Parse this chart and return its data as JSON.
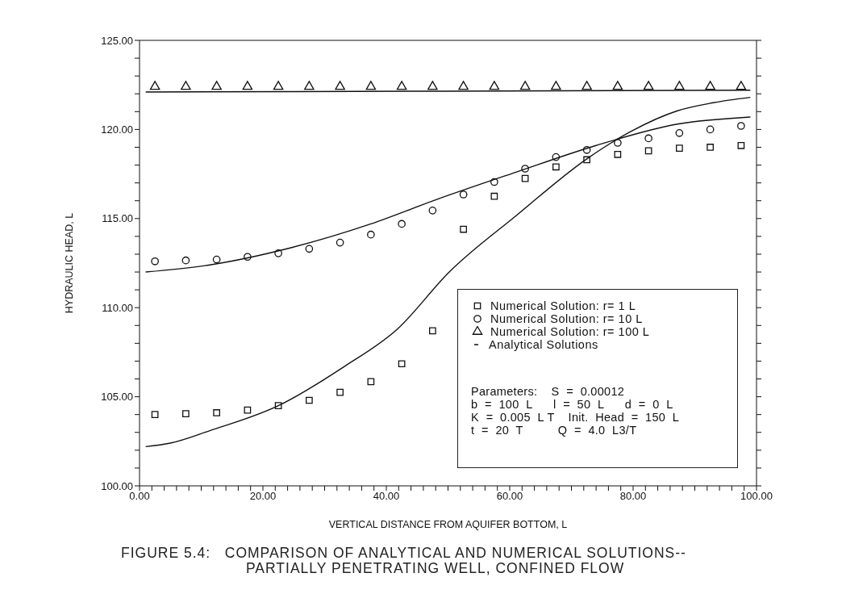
{
  "chart_data": {
    "type": "scatter",
    "title": "FIGURE 5.4:   COMPARISON OF ANALYTICAL AND NUMERICAL SOLUTIONS--",
    "subtitle": "PARTIALLY PENETRATING WELL, CONFINED FLOW",
    "xlabel": "VERTICAL DISTANCE FROM AQUIFER BOTTOM, L",
    "ylabel": "HYDRAULIC HEAD, L",
    "xlim": [
      0,
      100
    ],
    "ylim": [
      100,
      125
    ],
    "xticks": [
      {
        "value": 0,
        "label": "0.00"
      },
      {
        "value": 2,
        "label": null
      },
      {
        "value": 4,
        "label": null
      },
      {
        "value": 6,
        "label": null
      },
      {
        "value": 8,
        "label": null
      },
      {
        "value": 10,
        "label": null
      },
      {
        "value": 12,
        "label": null
      },
      {
        "value": 14,
        "label": null
      },
      {
        "value": 16,
        "label": null
      },
      {
        "value": 18,
        "label": null
      },
      {
        "value": 20,
        "label": "20.00"
      },
      {
        "value": 22,
        "label": null
      },
      {
        "value": 24,
        "label": null
      },
      {
        "value": 26,
        "label": null
      },
      {
        "value": 28,
        "label": null
      },
      {
        "value": 30,
        "label": null
      },
      {
        "value": 32,
        "label": null
      },
      {
        "value": 34,
        "label": null
      },
      {
        "value": 36,
        "label": null
      },
      {
        "value": 38,
        "label": null
      },
      {
        "value": 40,
        "label": "40.00"
      },
      {
        "value": 42,
        "label": null
      },
      {
        "value": 44,
        "label": null
      },
      {
        "value": 46,
        "label": null
      },
      {
        "value": 48,
        "label": null
      },
      {
        "value": 50,
        "label": null
      },
      {
        "value": 52,
        "label": null
      },
      {
        "value": 54,
        "label": null
      },
      {
        "value": 56,
        "label": null
      },
      {
        "value": 58,
        "label": null
      },
      {
        "value": 60,
        "label": "60.00"
      },
      {
        "value": 62,
        "label": null
      },
      {
        "value": 64,
        "label": null
      },
      {
        "value": 66,
        "label": null
      },
      {
        "value": 68,
        "label": null
      },
      {
        "value": 70,
        "label": null
      },
      {
        "value": 72,
        "label": null
      },
      {
        "value": 74,
        "label": null
      },
      {
        "value": 76,
        "label": null
      },
      {
        "value": 78,
        "label": null
      },
      {
        "value": 80,
        "label": "80.00"
      },
      {
        "value": 82,
        "label": null
      },
      {
        "value": 84,
        "label": null
      },
      {
        "value": 86,
        "label": null
      },
      {
        "value": 88,
        "label": null
      },
      {
        "value": 90,
        "label": null
      },
      {
        "value": 92,
        "label": null
      },
      {
        "value": 94,
        "label": null
      },
      {
        "value": 96,
        "label": null
      },
      {
        "value": 98,
        "label": null
      },
      {
        "value": 100,
        "label": "100.00"
      }
    ],
    "yticks": [
      {
        "value": 100,
        "label": "100.00"
      },
      {
        "value": 101,
        "label": null
      },
      {
        "value": 102,
        "label": null
      },
      {
        "value": 103,
        "label": null
      },
      {
        "value": 104,
        "label": null
      },
      {
        "value": 105,
        "label": "105.00"
      },
      {
        "value": 106,
        "label": null
      },
      {
        "value": 107,
        "label": null
      },
      {
        "value": 108,
        "label": null
      },
      {
        "value": 109,
        "label": null
      },
      {
        "value": 110,
        "label": "110.00"
      },
      {
        "value": 111,
        "label": null
      },
      {
        "value": 112,
        "label": null
      },
      {
        "value": 113,
        "label": null
      },
      {
        "value": 114,
        "label": null
      },
      {
        "value": 115,
        "label": "115.00"
      },
      {
        "value": 116,
        "label": null
      },
      {
        "value": 117,
        "label": null
      },
      {
        "value": 118,
        "label": null
      },
      {
        "value": 119,
        "label": null
      },
      {
        "value": 120,
        "label": "120.00"
      },
      {
        "value": 121,
        "label": null
      },
      {
        "value": 122,
        "label": null
      },
      {
        "value": 123,
        "label": null
      },
      {
        "value": 124,
        "label": null
      },
      {
        "value": 125,
        "label": "125.00"
      }
    ],
    "grid": false,
    "legend": "bottom right",
    "series": [
      {
        "name": "Numerical Solution: r= 1 L",
        "marker": "square",
        "color": "#111111",
        "x": [
          2.5,
          7.5,
          12.5,
          17.5,
          22.5,
          27.5,
          32.5,
          37.5,
          42.5,
          47.5,
          52.5,
          57.5,
          62.5,
          67.5,
          72.5,
          77.5,
          82.5,
          87.5,
          92.5,
          97.5
        ],
        "values": [
          104.0,
          104.05,
          104.1,
          104.25,
          104.5,
          104.8,
          105.25,
          105.85,
          106.85,
          108.7,
          114.4,
          116.25,
          117.25,
          117.9,
          118.3,
          118.6,
          118.8,
          118.95,
          119.0,
          119.1
        ]
      },
      {
        "name": "Numerical Solution: r= 10 L",
        "marker": "circle",
        "color": "#111111",
        "x": [
          2.5,
          7.5,
          12.5,
          17.5,
          22.5,
          27.5,
          32.5,
          37.5,
          42.5,
          47.5,
          52.5,
          57.5,
          62.5,
          67.5,
          72.5,
          77.5,
          82.5,
          87.5,
          92.5,
          97.5
        ],
        "values": [
          112.6,
          112.65,
          112.7,
          112.85,
          113.05,
          113.3,
          113.65,
          114.1,
          114.7,
          115.45,
          116.35,
          117.05,
          117.8,
          118.45,
          118.85,
          119.25,
          119.5,
          119.8,
          120.0,
          120.2
        ]
      },
      {
        "name": "Numerical Solution: r= 100 L",
        "marker": "triangle",
        "color": "#111111",
        "x": [
          2.5,
          7.5,
          12.5,
          17.5,
          22.5,
          27.5,
          32.5,
          37.5,
          42.5,
          47.5,
          52.5,
          57.5,
          62.5,
          67.5,
          72.5,
          77.5,
          82.5,
          87.5,
          92.5,
          97.5
        ],
        "values": [
          122.4,
          122.4,
          122.4,
          122.4,
          122.4,
          122.4,
          122.4,
          122.4,
          122.4,
          122.4,
          122.4,
          122.4,
          122.4,
          122.4,
          122.4,
          122.4,
          122.4,
          122.4,
          122.4,
          122.4
        ]
      },
      {
        "name": "Analytical Solutions",
        "type": "line",
        "marker": "none",
        "color": "#111111",
        "x": [
          1,
          5,
          11.4,
          22.5,
          33.2,
          41.8,
          50.2,
          61,
          72.5,
          79.7,
          87.2,
          93,
          99
        ],
        "values": [
          102.2,
          102.4,
          103.1,
          104.5,
          106.7,
          108.8,
          112.0,
          115.15,
          118.35,
          119.9,
          121.05,
          121.5,
          121.8
        ]
      },
      {
        "type": "line",
        "marker": "none",
        "color": "#111111",
        "x": [
          1,
          11.4,
          24.4,
          37.5,
          48,
          61,
          74,
          87.2,
          99
        ],
        "values": [
          112.0,
          112.4,
          113.35,
          114.7,
          116.05,
          117.6,
          119.1,
          120.3,
          120.7
        ]
      },
      {
        "type": "line",
        "marker": "none",
        "color": "#111111",
        "x": [
          1,
          50,
          99
        ],
        "values": [
          122.1,
          122.15,
          122.2
        ]
      }
    ],
    "annotations": [
      "Parameters:    S  =  0.00012",
      "b  =  100  L      l  =  50  L      d  =  0  L",
      "K  =  0.005  L T    Init.  Head  =  150  L",
      "t  =  20  T          Q  =  4.0  L3/T"
    ]
  }
}
